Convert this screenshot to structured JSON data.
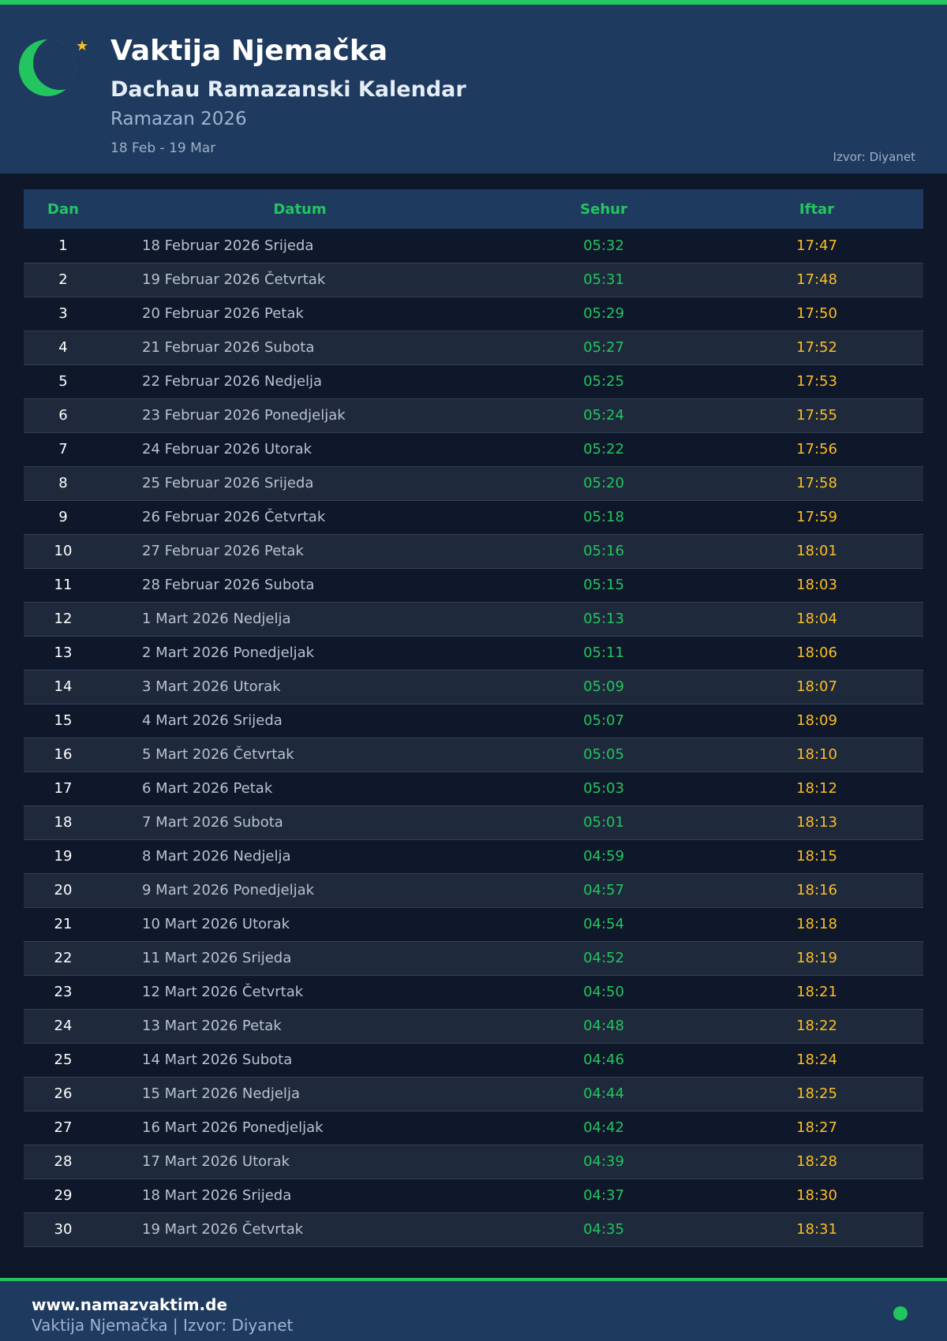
{
  "header": {
    "title": "Vaktija Njemačka",
    "subtitle": "Dachau Ramazanski Kalendar",
    "period": "Ramazan 2026",
    "range": "18 Feb - 19 Mar",
    "source": "Izvor: Diyanet"
  },
  "colors": {
    "accent": "#22c55e",
    "iftar": "#fbbf24",
    "header_bg": "#1e3a5f",
    "page_bg": "#0f172a"
  },
  "icons": {
    "logo": "crescent-moon-star-icon"
  },
  "table": {
    "columns": [
      "Dan",
      "Datum",
      "Sehur",
      "Iftar"
    ],
    "rows": [
      [
        "1",
        "18 Februar 2026 Srijeda",
        "05:32",
        "17:47"
      ],
      [
        "2",
        "19 Februar 2026 Četvrtak",
        "05:31",
        "17:48"
      ],
      [
        "3",
        "20 Februar 2026 Petak",
        "05:29",
        "17:50"
      ],
      [
        "4",
        "21 Februar 2026 Subota",
        "05:27",
        "17:52"
      ],
      [
        "5",
        "22 Februar 2026 Nedjelja",
        "05:25",
        "17:53"
      ],
      [
        "6",
        "23 Februar 2026 Ponedjeljak",
        "05:24",
        "17:55"
      ],
      [
        "7",
        "24 Februar 2026 Utorak",
        "05:22",
        "17:56"
      ],
      [
        "8",
        "25 Februar 2026 Srijeda",
        "05:20",
        "17:58"
      ],
      [
        "9",
        "26 Februar 2026 Četvrtak",
        "05:18",
        "17:59"
      ],
      [
        "10",
        "27 Februar 2026 Petak",
        "05:16",
        "18:01"
      ],
      [
        "11",
        "28 Februar 2026 Subota",
        "05:15",
        "18:03"
      ],
      [
        "12",
        "1 Mart 2026 Nedjelja",
        "05:13",
        "18:04"
      ],
      [
        "13",
        "2 Mart 2026 Ponedjeljak",
        "05:11",
        "18:06"
      ],
      [
        "14",
        "3 Mart 2026 Utorak",
        "05:09",
        "18:07"
      ],
      [
        "15",
        "4 Mart 2026 Srijeda",
        "05:07",
        "18:09"
      ],
      [
        "16",
        "5 Mart 2026 Četvrtak",
        "05:05",
        "18:10"
      ],
      [
        "17",
        "6 Mart 2026 Petak",
        "05:03",
        "18:12"
      ],
      [
        "18",
        "7 Mart 2026 Subota",
        "05:01",
        "18:13"
      ],
      [
        "19",
        "8 Mart 2026 Nedjelja",
        "04:59",
        "18:15"
      ],
      [
        "20",
        "9 Mart 2026 Ponedjeljak",
        "04:57",
        "18:16"
      ],
      [
        "21",
        "10 Mart 2026 Utorak",
        "04:54",
        "18:18"
      ],
      [
        "22",
        "11 Mart 2026 Srijeda",
        "04:52",
        "18:19"
      ],
      [
        "23",
        "12 Mart 2026 Četvrtak",
        "04:50",
        "18:21"
      ],
      [
        "24",
        "13 Mart 2026 Petak",
        "04:48",
        "18:22"
      ],
      [
        "25",
        "14 Mart 2026 Subota",
        "04:46",
        "18:24"
      ],
      [
        "26",
        "15 Mart 2026 Nedjelja",
        "04:44",
        "18:25"
      ],
      [
        "27",
        "16 Mart 2026 Ponedjeljak",
        "04:42",
        "18:27"
      ],
      [
        "28",
        "17 Mart 2026 Utorak",
        "04:39",
        "18:28"
      ],
      [
        "29",
        "18 Mart 2026 Srijeda",
        "04:37",
        "18:30"
      ],
      [
        "30",
        "19 Mart 2026 Četvrtak",
        "04:35",
        "18:31"
      ]
    ]
  },
  "footer": {
    "url": "www.namazvaktim.de",
    "text": "Vaktija Njemačka | Izvor: Diyanet"
  }
}
